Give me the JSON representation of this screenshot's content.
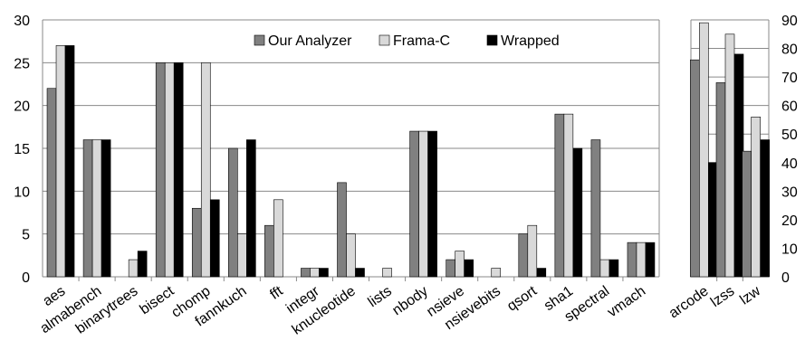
{
  "chart_data": [
    {
      "type": "bar",
      "categories": [
        "aes",
        "almabench",
        "binarytrees",
        "bisect",
        "chomp",
        "fannkuch",
        "fft",
        "integr",
        "knucleotide",
        "lists",
        "nbody",
        "nsieve",
        "nsievebits",
        "qsort",
        "sha1",
        "spectral",
        "vmach"
      ],
      "series": [
        {
          "name": "Our Analyzer",
          "color": "#808080",
          "values": [
            22,
            16,
            0,
            25,
            8,
            15,
            6,
            1,
            11,
            0,
            17,
            2,
            0,
            5,
            19,
            16,
            4
          ]
        },
        {
          "name": "Frama-C",
          "color": "#d9d9d9",
          "values": [
            27,
            16,
            2,
            25,
            25,
            5,
            9,
            1,
            5,
            1,
            17,
            3,
            1,
            6,
            19,
            2,
            4
          ]
        },
        {
          "name": "Wrapped",
          "color": "#000000",
          "values": [
            27,
            16,
            3,
            25,
            9,
            16,
            0,
            1,
            1,
            0,
            17,
            2,
            0,
            1,
            15,
            2,
            4
          ]
        }
      ],
      "ylim": [
        0,
        30
      ],
      "yticks": [
        0,
        5,
        10,
        15,
        20,
        25,
        30
      ],
      "grid": true,
      "legend": "top-right"
    },
    {
      "type": "bar",
      "categories": [
        "arcode",
        "lzss",
        "lzw"
      ],
      "series": [
        {
          "name": "Our Analyzer",
          "color": "#808080",
          "values": [
            76,
            68,
            44
          ]
        },
        {
          "name": "Frama-C",
          "color": "#d9d9d9",
          "values": [
            89,
            85,
            56
          ]
        },
        {
          "name": "Wrapped",
          "color": "#000000",
          "values": [
            40,
            78,
            48
          ]
        }
      ],
      "ylim": [
        0,
        90
      ],
      "yticks": [
        0,
        10,
        20,
        30,
        40,
        50,
        60,
        70,
        80,
        90
      ],
      "grid": true
    }
  ]
}
